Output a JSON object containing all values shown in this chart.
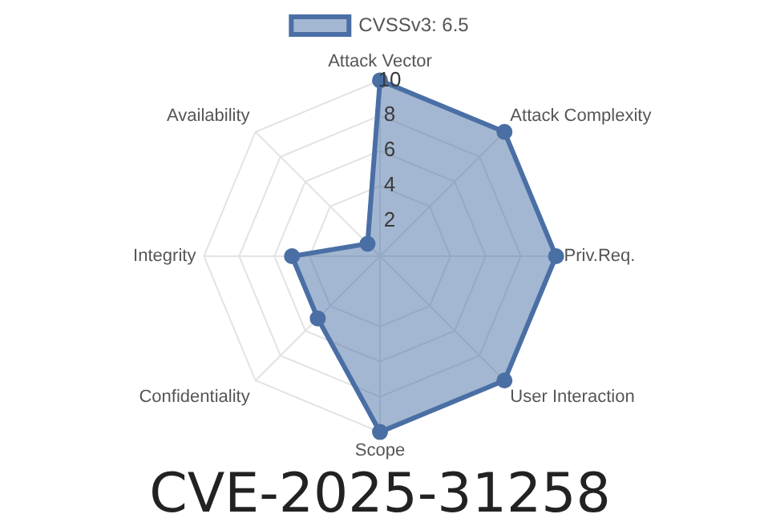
{
  "chart_data": {
    "type": "radar",
    "title": "CVE-2025-31258",
    "categories": [
      "Attack Vector",
      "Attack Complexity",
      "Priv.Req.",
      "User Interaction",
      "Scope",
      "Confidentiality",
      "Integrity",
      "Availability"
    ],
    "series": [
      {
        "name": "CVSSv3: 6.5",
        "color": "#4a6fa5",
        "values": [
          10,
          10,
          10,
          10,
          10,
          5,
          5,
          1
        ]
      }
    ],
    "ylim": [
      0,
      10
    ],
    "yticks": [
      2,
      4,
      6,
      8,
      10
    ],
    "grid": true,
    "legend": "top",
    "marker": "circle"
  }
}
